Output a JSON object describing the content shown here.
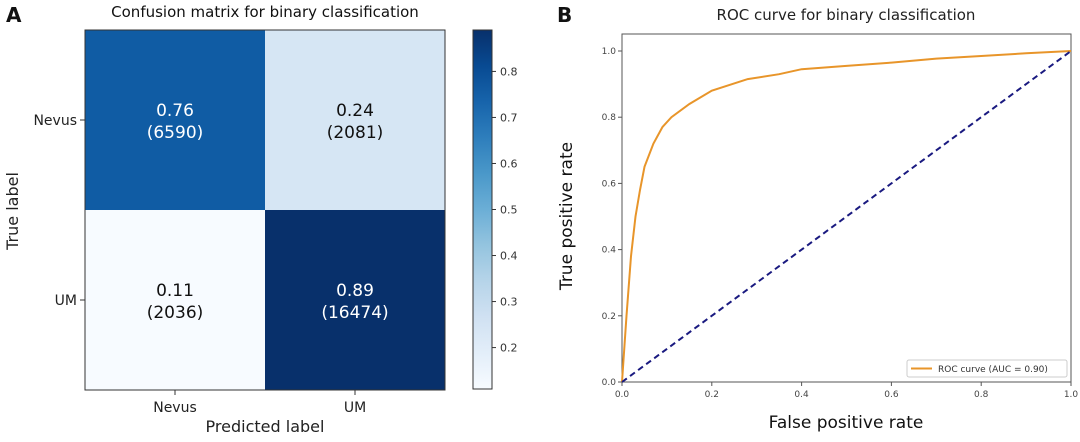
{
  "chart_data": [
    {
      "type": "heatmap",
      "panel_label": "A",
      "title": "Confusion matrix for binary classification",
      "xlabel": "Predicted label",
      "ylabel": "True label",
      "x_categories": [
        "Nevus",
        "UM"
      ],
      "y_categories": [
        "Nevus",
        "UM"
      ],
      "cells": [
        [
          {
            "value": "0.76",
            "count": "(6590)",
            "v": 0.76
          },
          {
            "value": "0.24",
            "count": "(2081)",
            "v": 0.24
          }
        ],
        [
          {
            "value": "0.11",
            "count": "(2036)",
            "v": 0.11
          },
          {
            "value": "0.89",
            "count": "(16474)",
            "v": 0.89
          }
        ]
      ],
      "colormap": "Blues",
      "colorbar": {
        "range": [
          0.11,
          0.89
        ],
        "ticks": [
          "0.2",
          "0.3",
          "0.4",
          "0.5",
          "0.6",
          "0.7",
          "0.8"
        ]
      }
    },
    {
      "type": "line",
      "panel_label": "B",
      "title": "ROC curve for binary classification",
      "xlabel": "False positive rate",
      "ylabel": "True positive rate",
      "xlim": [
        0,
        1
      ],
      "ylim": [
        0,
        1
      ],
      "xticks": [
        "0.0",
        "0.2",
        "0.4",
        "0.6",
        "0.8",
        "1.0"
      ],
      "yticks": [
        "0.0",
        "0.2",
        "0.4",
        "0.6",
        "0.8",
        "1.0"
      ],
      "legend": {
        "position": "lower-right",
        "label": "ROC curve (AUC = 0.90)"
      },
      "series": [
        {
          "name": "ROC curve (AUC = 0.90)",
          "color": "#e8952a",
          "style": "solid",
          "x": [
            0,
            0.01,
            0.02,
            0.03,
            0.04,
            0.05,
            0.07,
            0.09,
            0.11,
            0.15,
            0.2,
            0.28,
            0.35,
            0.4,
            0.5,
            0.6,
            0.7,
            0.8,
            0.9,
            1.0
          ],
          "y": [
            0,
            0.2,
            0.38,
            0.5,
            0.58,
            0.65,
            0.72,
            0.77,
            0.8,
            0.84,
            0.88,
            0.915,
            0.93,
            0.945,
            0.955,
            0.965,
            0.977,
            0.985,
            0.993,
            1.0
          ]
        },
        {
          "color": "#1a1a80",
          "style": "dashed",
          "x": [
            0,
            1
          ],
          "y": [
            0,
            1
          ]
        }
      ]
    }
  ]
}
